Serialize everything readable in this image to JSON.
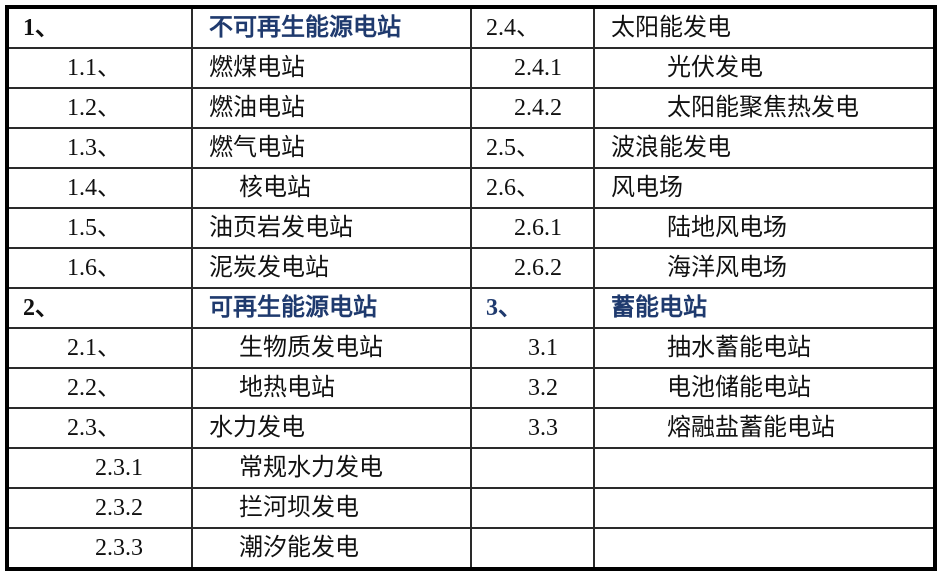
{
  "left": [
    {
      "num": "1、",
      "name": "不可再生能源电站"
    },
    {
      "num": "1.1、",
      "name": "燃煤电站"
    },
    {
      "num": "1.2、",
      "name": "燃油电站"
    },
    {
      "num": "1.3、",
      "name": "燃气电站"
    },
    {
      "num": "1.4、",
      "name": "核电站"
    },
    {
      "num": "1.5、",
      "name": "油页岩发电站"
    },
    {
      "num": "1.6、",
      "name": "泥炭发电站"
    },
    {
      "num": "2、",
      "name": "可再生能源电站"
    },
    {
      "num": "2.1、",
      "name": "生物质发电站"
    },
    {
      "num": "2.2、",
      "name": "地热电站"
    },
    {
      "num": "2.3、",
      "name": "水力发电"
    },
    {
      "num": "2.3.1",
      "name": "常规水力发电"
    },
    {
      "num": "2.3.2",
      "name": "拦河坝发电"
    },
    {
      "num": "2.3.3",
      "name": "潮汐能发电"
    }
  ],
  "right": [
    {
      "num": "2.4、",
      "name": "太阳能发电"
    },
    {
      "num": "2.4.1",
      "name": "光伏发电"
    },
    {
      "num": "2.4.2",
      "name": "太阳能聚焦热发电"
    },
    {
      "num": "2.5、",
      "name": "波浪能发电"
    },
    {
      "num": "2.6、",
      "name": "风电场"
    },
    {
      "num": "2.6.1",
      "name": "陆地风电场"
    },
    {
      "num": "2.6.2",
      "name": "海洋风电场"
    },
    {
      "num": "3、",
      "name": "蓄能电站"
    },
    {
      "num": "3.1",
      "name": "抽水蓄能电站"
    },
    {
      "num": "3.2",
      "name": "电池储能电站"
    },
    {
      "num": "3.3",
      "name": "熔融盐蓄能电站"
    },
    {
      "num": "",
      "name": ""
    },
    {
      "num": "",
      "name": ""
    },
    {
      "num": "",
      "name": ""
    }
  ],
  "colors": {
    "heading": "#1f3a6e",
    "text": "#111111",
    "border": "#000000"
  }
}
